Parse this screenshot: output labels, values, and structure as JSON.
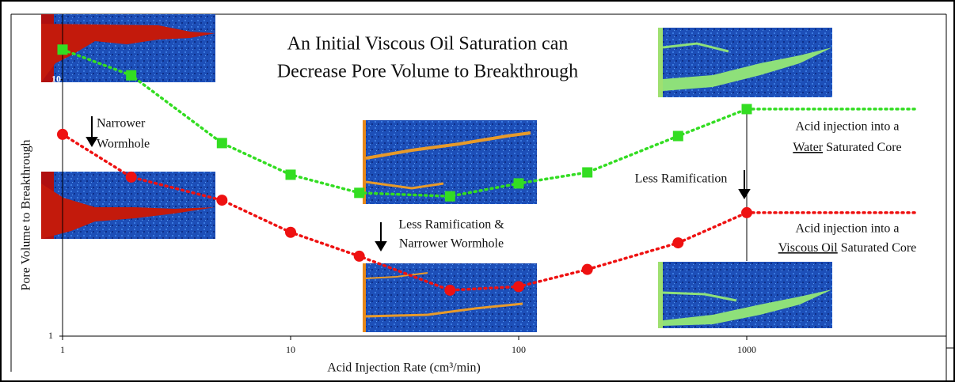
{
  "chart_data": {
    "type": "line",
    "title": [
      "An Initial Viscous Oil Saturation can",
      "Decrease Pore Volume to Breakthrough"
    ],
    "x_label": "Acid Injection Rate (cm³/min)",
    "y_label": "Pore Volume to Breakthrough",
    "x": [
      1,
      2,
      5,
      10,
      20,
      50,
      100,
      200,
      500,
      1000
    ],
    "series": [
      {
        "color": "#33dd22",
        "marker": "square",
        "values": [
          13.1,
          10.4,
          5.66,
          4.26,
          3.62,
          3.51,
          3.94,
          4.35,
          6.03,
          7.68
        ]
      },
      {
        "color": "#ee1111",
        "marker": "circle",
        "values": [
          6.12,
          4.17,
          3.39,
          2.54,
          2.05,
          1.51,
          1.56,
          1.82,
          2.31,
          3.03
        ]
      }
    ],
    "xlim": [
      1,
      1000
    ],
    "xticks": [
      1,
      10,
      100,
      1000
    ],
    "ylim": [
      1,
      18
    ],
    "yticks": [
      1,
      10
    ],
    "log_x": true,
    "log_y": true,
    "annotations": {
      "narrower": [
        "Narrower",
        "Wormhole"
      ],
      "center": [
        "Less Ramification &",
        "Narrower Wormhole"
      ],
      "less_ramification": "Less Ramification",
      "water": {
        "line1": "Acid injection into a",
        "underlined": "Water",
        "rest": " Saturated Core"
      },
      "oil": {
        "line1": "Acid injection into a",
        "underlined": "Viscous Oil",
        "rest": " Saturated Core"
      }
    }
  }
}
